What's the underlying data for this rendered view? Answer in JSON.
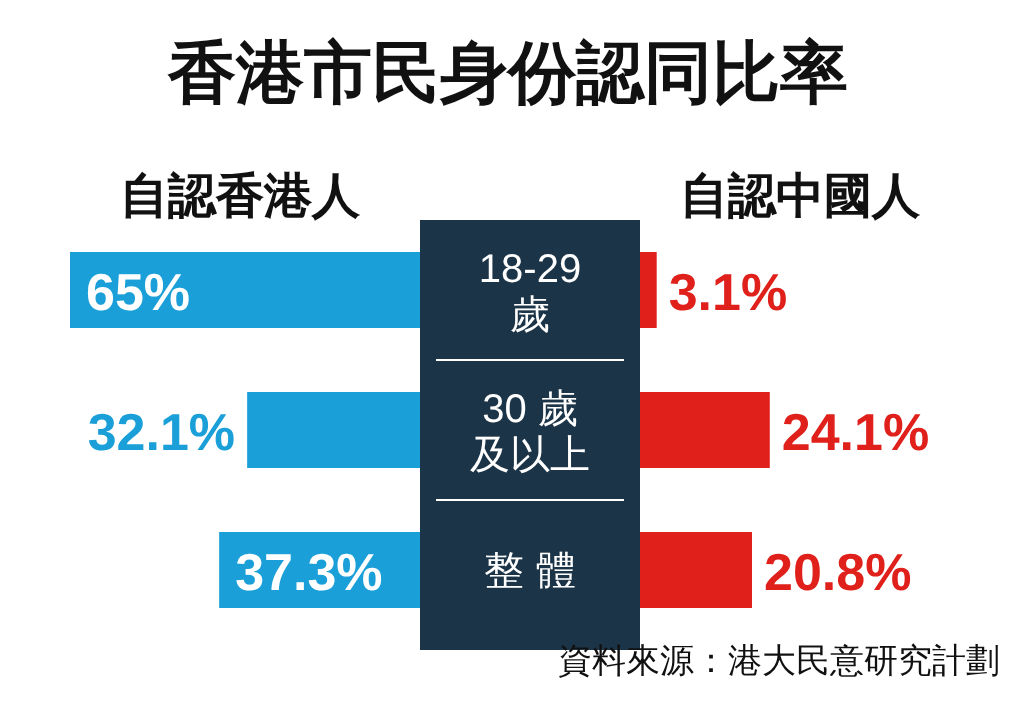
{
  "chart_data": [
    {
      "type": "bar",
      "orientation": "horizontal",
      "title": "香港市民身份認同比率",
      "categories": [
        "18-29 歲",
        "30 歲及以上",
        "整 體"
      ],
      "legend": "top",
      "series": [
        {
          "name": "自認香港人",
          "color": "#1a9fd8",
          "values": [
            65,
            32.1,
            37.3
          ],
          "value_labels": [
            "65%",
            "32.1%",
            "37.3%"
          ]
        }
      ],
      "annotations": [
        "資料來源：港大民意研究計劃"
      ]
    },
    {
      "type": "bar",
      "orientation": "horizontal",
      "categories": [
        null,
        null,
        null
      ],
      "legend": "top",
      "series": [
        {
          "name": "自認中國人",
          "color": "#e0201b",
          "values": [
            3.1,
            24.1,
            20.8
          ],
          "value_labels": [
            "3.1%",
            "24.1%",
            "20.8%"
          ]
        }
      ]
    }
  ]
}
